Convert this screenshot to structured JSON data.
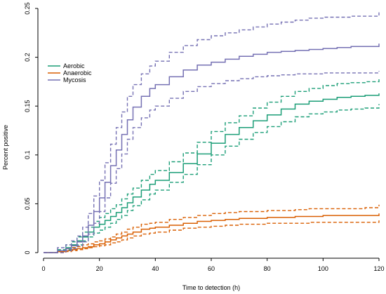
{
  "chart_data": {
    "type": "line",
    "xlabel": "Time to detection (h)",
    "ylabel": "Percent positive",
    "xlim": [
      0,
      120
    ],
    "ylim": [
      0,
      0.25
    ],
    "x_ticks": [
      0,
      20,
      40,
      60,
      80,
      100,
      120
    ],
    "y_ticks": [
      0,
      0.05,
      0.1,
      0.15,
      0.2,
      0.25
    ],
    "x_tick_labels": [
      "0",
      "20",
      "40",
      "60",
      "80",
      "100",
      "120"
    ],
    "y_tick_labels": [
      "0",
      "0.05",
      "0.1",
      "0.15",
      "0.2",
      "0.25"
    ],
    "grid": false,
    "legend_position": "upper-left",
    "series": [
      {
        "name": "Aerobic",
        "color": "#1b9e77",
        "x": [
          0,
          2,
          5,
          8,
          10,
          12,
          14,
          16,
          18,
          20,
          22,
          24,
          26,
          28,
          30,
          32,
          35,
          38,
          40,
          45,
          50,
          55,
          60,
          65,
          70,
          75,
          80,
          85,
          90,
          95,
          100,
          105,
          110,
          115,
          120
        ],
        "estimate": [
          0,
          0,
          0.002,
          0.005,
          0.008,
          0.012,
          0.016,
          0.021,
          0.026,
          0.029,
          0.033,
          0.037,
          0.041,
          0.046,
          0.051,
          0.057,
          0.064,
          0.07,
          0.074,
          0.082,
          0.091,
          0.101,
          0.112,
          0.121,
          0.128,
          0.135,
          0.141,
          0.147,
          0.152,
          0.155,
          0.157,
          0.159,
          0.16,
          0.161,
          0.163
        ],
        "lower": [
          0,
          0,
          0.001,
          0.003,
          0.005,
          0.008,
          0.012,
          0.016,
          0.02,
          0.023,
          0.026,
          0.03,
          0.034,
          0.038,
          0.043,
          0.048,
          0.054,
          0.06,
          0.064,
          0.072,
          0.08,
          0.09,
          0.1,
          0.109,
          0.116,
          0.123,
          0.129,
          0.134,
          0.139,
          0.142,
          0.144,
          0.146,
          0.147,
          0.148,
          0.152
        ],
        "upper": [
          0,
          0,
          0.003,
          0.008,
          0.011,
          0.016,
          0.021,
          0.026,
          0.032,
          0.036,
          0.04,
          0.045,
          0.049,
          0.055,
          0.06,
          0.066,
          0.074,
          0.08,
          0.084,
          0.093,
          0.102,
          0.113,
          0.124,
          0.133,
          0.14,
          0.148,
          0.154,
          0.16,
          0.165,
          0.168,
          0.171,
          0.173,
          0.174,
          0.175,
          0.178
        ]
      },
      {
        "name": "Anaerobic",
        "color": "#d95f02",
        "x": [
          0,
          2,
          5,
          8,
          10,
          12,
          14,
          16,
          18,
          20,
          22,
          24,
          26,
          28,
          30,
          32,
          35,
          38,
          40,
          45,
          50,
          55,
          60,
          65,
          70,
          75,
          80,
          85,
          90,
          95,
          100,
          105,
          110,
          115,
          120
        ],
        "estimate": [
          0,
          0,
          0.001,
          0.002,
          0.003,
          0.004,
          0.005,
          0.006,
          0.008,
          0.009,
          0.011,
          0.013,
          0.015,
          0.017,
          0.019,
          0.021,
          0.024,
          0.025,
          0.026,
          0.028,
          0.03,
          0.032,
          0.033,
          0.034,
          0.035,
          0.035,
          0.036,
          0.036,
          0.037,
          0.037,
          0.038,
          0.038,
          0.038,
          0.038,
          0.04
        ],
        "lower": [
          0,
          0,
          0,
          0.001,
          0.002,
          0.003,
          0.004,
          0.005,
          0.006,
          0.007,
          0.008,
          0.01,
          0.011,
          0.013,
          0.015,
          0.017,
          0.019,
          0.02,
          0.021,
          0.023,
          0.025,
          0.026,
          0.027,
          0.028,
          0.029,
          0.029,
          0.03,
          0.03,
          0.03,
          0.031,
          0.031,
          0.031,
          0.031,
          0.031,
          0.033
        ],
        "upper": [
          0,
          0,
          0.002,
          0.004,
          0.005,
          0.006,
          0.008,
          0.009,
          0.011,
          0.012,
          0.014,
          0.016,
          0.019,
          0.021,
          0.024,
          0.026,
          0.029,
          0.03,
          0.031,
          0.034,
          0.036,
          0.038,
          0.04,
          0.041,
          0.042,
          0.042,
          0.043,
          0.043,
          0.044,
          0.045,
          0.045,
          0.045,
          0.045,
          0.046,
          0.049
        ]
      },
      {
        "name": "Mycosis",
        "color": "#7570b3",
        "x": [
          0,
          2,
          5,
          8,
          10,
          12,
          14,
          16,
          18,
          20,
          22,
          24,
          26,
          28,
          30,
          32,
          35,
          38,
          40,
          45,
          50,
          55,
          60,
          65,
          70,
          75,
          80,
          85,
          90,
          95,
          100,
          105,
          110,
          115,
          120
        ],
        "estimate": [
          0,
          0,
          0.002,
          0.004,
          0.007,
          0.011,
          0.017,
          0.028,
          0.042,
          0.056,
          0.072,
          0.089,
          0.105,
          0.121,
          0.136,
          0.149,
          0.16,
          0.168,
          0.172,
          0.18,
          0.187,
          0.192,
          0.195,
          0.198,
          0.201,
          0.203,
          0.205,
          0.206,
          0.207,
          0.208,
          0.209,
          0.21,
          0.211,
          0.211,
          0.214
        ],
        "lower": [
          0,
          0,
          0,
          0.002,
          0.004,
          0.007,
          0.011,
          0.019,
          0.03,
          0.042,
          0.056,
          0.071,
          0.086,
          0.101,
          0.116,
          0.128,
          0.138,
          0.146,
          0.15,
          0.158,
          0.165,
          0.17,
          0.173,
          0.176,
          0.178,
          0.18,
          0.181,
          0.182,
          0.183,
          0.183,
          0.184,
          0.184,
          0.184,
          0.184,
          0.186
        ],
        "upper": [
          0,
          0,
          0.005,
          0.008,
          0.012,
          0.017,
          0.026,
          0.04,
          0.058,
          0.074,
          0.092,
          0.111,
          0.128,
          0.144,
          0.16,
          0.172,
          0.183,
          0.191,
          0.196,
          0.205,
          0.212,
          0.218,
          0.222,
          0.225,
          0.228,
          0.231,
          0.234,
          0.236,
          0.238,
          0.24,
          0.241,
          0.241,
          0.242,
          0.242,
          0.246
        ]
      }
    ]
  }
}
